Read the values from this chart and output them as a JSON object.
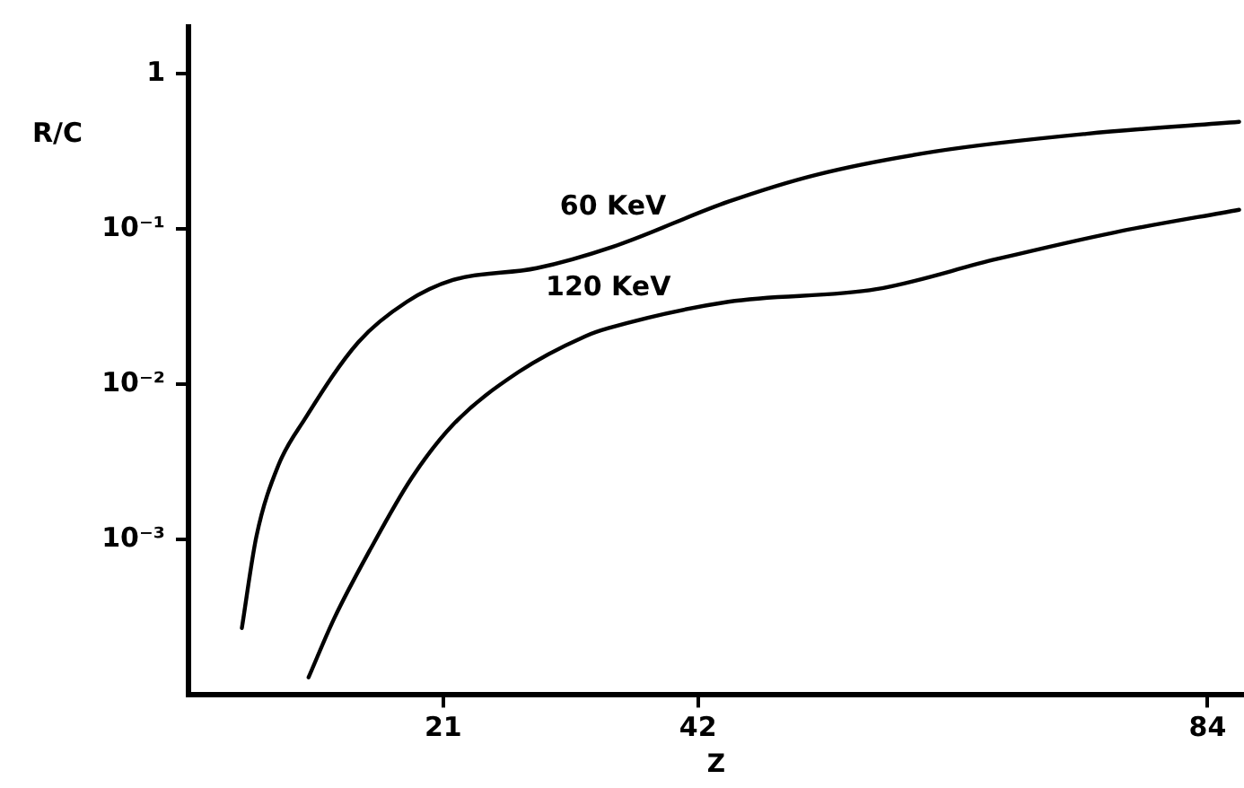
{
  "chart_data": {
    "type": "line",
    "xlabel": "Z",
    "ylabel": "R/C",
    "log": "y",
    "grid": false,
    "legend": false,
    "marker": "none",
    "line_style": "solid",
    "xlim": [
      0,
      87
    ],
    "xticks": [
      21,
      42,
      84
    ],
    "ylim": [
      0.0001,
      2
    ],
    "yticks": [
      1,
      {
        "value": 0.1,
        "label": "10⁻¹"
      },
      {
        "value": 0.01,
        "label": "10⁻²"
      },
      {
        "value": 0.001,
        "label": "10⁻³"
      }
    ],
    "series": [
      {
        "name": "60 KeV",
        "color": "#000000",
        "x": [
          4.4,
          5.6,
          7.4,
          9.6,
          14,
          18,
          21.8,
          28.7,
          35,
          44.5,
          51.8,
          61.6,
          74,
          86.6
        ],
        "values": [
          0.00027,
          0.00105,
          0.003,
          0.006,
          0.0187,
          0.034,
          0.047,
          0.056,
          0.077,
          0.15,
          0.224,
          0.316,
          0.41,
          0.49
        ]
      },
      {
        "name": "120 KeV",
        "color": "#000000",
        "x": [
          9.9,
          12,
          15,
          18.4,
          21.8,
          27.2,
          32.7,
          34.6,
          44.5,
          56.7,
          66.6,
          76.3,
          86.6
        ],
        "values": [
          0.00013,
          0.00031,
          0.00087,
          0.0025,
          0.0055,
          0.012,
          0.0204,
          0.023,
          0.034,
          0.041,
          0.064,
          0.095,
          0.133
        ]
      }
    ]
  }
}
